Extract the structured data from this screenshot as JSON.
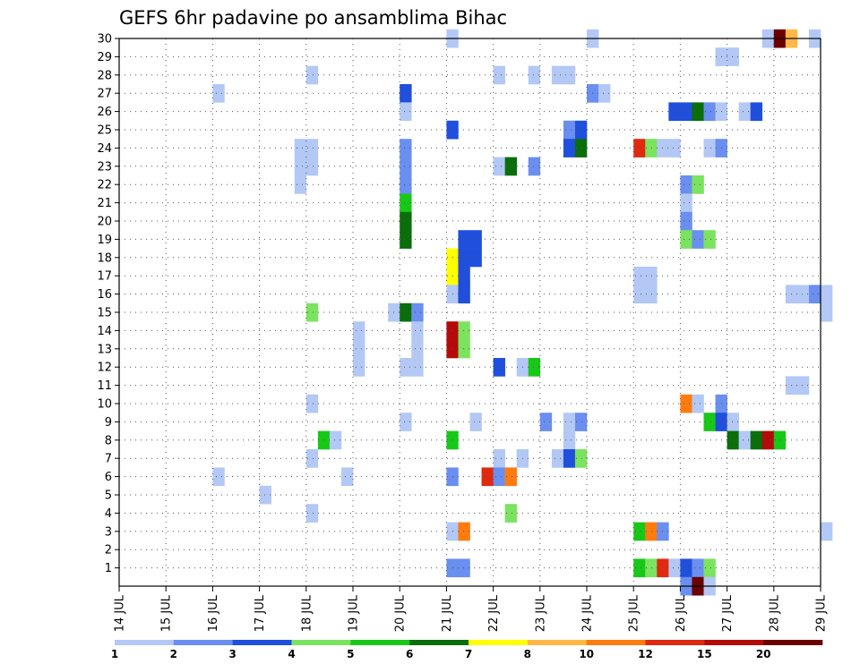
{
  "chart_data": {
    "type": "heatmap",
    "title": "GEFS 6hr padavine po ansamblima Bihac",
    "xlabel": "",
    "ylabel": "",
    "x_tick_labels": [
      "14 JUL",
      "15 JUL",
      "16 JUL",
      "17 JUL",
      "18 JUL",
      "19 JUL",
      "20 JUL",
      "21 JUL",
      "22 JUL",
      "23 JUL",
      "24 JUL",
      "25 JUL",
      "26 JUL",
      "27 JUL",
      "28 JUL",
      "29 JUL"
    ],
    "x_range_days": [
      14,
      29
    ],
    "y_tick_labels": [
      "1",
      "2",
      "3",
      "4",
      "5",
      "6",
      "7",
      "8",
      "9",
      "10",
      "11",
      "12",
      "13",
      "14",
      "15",
      "16",
      "17",
      "18",
      "19",
      "20",
      "21",
      "22",
      "23",
      "24",
      "25",
      "26",
      "27",
      "28",
      "29",
      "30"
    ],
    "y_range": [
      0,
      30
    ],
    "grid": true,
    "grid_style": "dotted",
    "colorbar": {
      "position": "bottom",
      "labels": [
        "1",
        "2",
        "3",
        "4",
        "5",
        "6",
        "7",
        "8",
        "10",
        "12",
        "15",
        "20"
      ],
      "colors": [
        "#b3c8f5",
        "#6a8ff0",
        "#1f4fdc",
        "#7be35f",
        "#18c818",
        "#0a6e0a",
        "#ffff00",
        "#ffb845",
        "#ff7b10",
        "#e02a10",
        "#b40a0a",
        "#6b0000"
      ]
    },
    "cells": [
      {
        "member": 30,
        "day": 21.0,
        "value": 1
      },
      {
        "member": 30,
        "day": 24.0,
        "value": 1
      },
      {
        "member": 30,
        "day": 27.75,
        "value": 1
      },
      {
        "member": 30,
        "day": 28.0,
        "value": 20
      },
      {
        "member": 30,
        "day": 28.25,
        "value": 8
      },
      {
        "member": 30,
        "day": 28.75,
        "value": 1
      },
      {
        "member": 29,
        "day": 26.75,
        "value": 1
      },
      {
        "member": 29,
        "day": 27.0,
        "value": 1
      },
      {
        "member": 28,
        "day": 18.0,
        "value": 1
      },
      {
        "member": 28,
        "day": 22.0,
        "value": 1
      },
      {
        "member": 28,
        "day": 22.75,
        "value": 1
      },
      {
        "member": 28,
        "day": 23.25,
        "value": 1
      },
      {
        "member": 28,
        "day": 23.5,
        "value": 1
      },
      {
        "member": 27,
        "day": 16.0,
        "value": 1
      },
      {
        "member": 27,
        "day": 20.0,
        "value": 3
      },
      {
        "member": 27,
        "day": 24.0,
        "value": 2
      },
      {
        "member": 27,
        "day": 24.25,
        "value": 1
      },
      {
        "member": 26,
        "day": 20.0,
        "value": 1
      },
      {
        "member": 26,
        "day": 25.75,
        "value": 3
      },
      {
        "member": 26,
        "day": 26.0,
        "value": 3
      },
      {
        "member": 26,
        "day": 26.25,
        "value": 6
      },
      {
        "member": 26,
        "day": 26.5,
        "value": 2
      },
      {
        "member": 26,
        "day": 26.75,
        "value": 1
      },
      {
        "member": 26,
        "day": 27.25,
        "value": 1
      },
      {
        "member": 26,
        "day": 27.5,
        "value": 3
      },
      {
        "member": 25,
        "day": 21.0,
        "value": 3
      },
      {
        "member": 25,
        "day": 23.5,
        "value": 2
      },
      {
        "member": 25,
        "day": 23.75,
        "value": 3
      },
      {
        "member": 24,
        "day": 17.75,
        "value": 1
      },
      {
        "member": 24,
        "day": 18.0,
        "value": 1
      },
      {
        "member": 24,
        "day": 20.0,
        "value": 2
      },
      {
        "member": 24,
        "day": 23.5,
        "value": 3
      },
      {
        "member": 24,
        "day": 23.75,
        "value": 6
      },
      {
        "member": 24,
        "day": 25.0,
        "value": 12
      },
      {
        "member": 24,
        "day": 25.25,
        "value": 4
      },
      {
        "member": 24,
        "day": 25.5,
        "value": 1
      },
      {
        "member": 24,
        "day": 25.75,
        "value": 1
      },
      {
        "member": 24,
        "day": 26.5,
        "value": 1
      },
      {
        "member": 24,
        "day": 26.75,
        "value": 2
      },
      {
        "member": 23,
        "day": 17.75,
        "value": 1
      },
      {
        "member": 23,
        "day": 18.0,
        "value": 1
      },
      {
        "member": 23,
        "day": 20.0,
        "value": 2
      },
      {
        "member": 23,
        "day": 22.0,
        "value": 1
      },
      {
        "member": 23,
        "day": 22.25,
        "value": 6
      },
      {
        "member": 23,
        "day": 22.75,
        "value": 2
      },
      {
        "member": 22,
        "day": 17.75,
        "value": 1
      },
      {
        "member": 22,
        "day": 20.0,
        "value": 2
      },
      {
        "member": 22,
        "day": 26.0,
        "value": 2
      },
      {
        "member": 22,
        "day": 26.25,
        "value": 4
      },
      {
        "member": 21,
        "day": 20.0,
        "value": 5
      },
      {
        "member": 21,
        "day": 26.0,
        "value": 1
      },
      {
        "member": 20,
        "day": 20.0,
        "value": 6
      },
      {
        "member": 20,
        "day": 26.0,
        "value": 2
      },
      {
        "member": 19,
        "day": 20.0,
        "value": 6
      },
      {
        "member": 19,
        "day": 21.25,
        "value": 3
      },
      {
        "member": 19,
        "day": 21.5,
        "value": 3
      },
      {
        "member": 19,
        "day": 26.0,
        "value": 4
      },
      {
        "member": 19,
        "day": 26.25,
        "value": 2
      },
      {
        "member": 19,
        "day": 26.5,
        "value": 4
      },
      {
        "member": 18,
        "day": 21.0,
        "value": 7
      },
      {
        "member": 18,
        "day": 21.25,
        "value": 3
      },
      {
        "member": 18,
        "day": 21.5,
        "value": 3
      },
      {
        "member": 17,
        "day": 21.0,
        "value": 7
      },
      {
        "member": 17,
        "day": 21.25,
        "value": 3
      },
      {
        "member": 17,
        "day": 25.0,
        "value": 1
      },
      {
        "member": 17,
        "day": 25.25,
        "value": 1
      },
      {
        "member": 16,
        "day": 21.0,
        "value": 1
      },
      {
        "member": 16,
        "day": 21.25,
        "value": 3
      },
      {
        "member": 16,
        "day": 25.0,
        "value": 1
      },
      {
        "member": 16,
        "day": 25.25,
        "value": 1
      },
      {
        "member": 16,
        "day": 28.25,
        "value": 1
      },
      {
        "member": 16,
        "day": 28.5,
        "value": 1
      },
      {
        "member": 16,
        "day": 28.75,
        "value": 2
      },
      {
        "member": 16,
        "day": 29.0,
        "value": 1
      },
      {
        "member": 15,
        "day": 18.0,
        "value": 4
      },
      {
        "member": 15,
        "day": 19.75,
        "value": 1
      },
      {
        "member": 15,
        "day": 20.0,
        "value": 6
      },
      {
        "member": 15,
        "day": 20.25,
        "value": 2
      },
      {
        "member": 15,
        "day": 29.0,
        "value": 1
      },
      {
        "member": 14,
        "day": 19.0,
        "value": 1
      },
      {
        "member": 14,
        "day": 20.25,
        "value": 1
      },
      {
        "member": 14,
        "day": 21.0,
        "value": 15
      },
      {
        "member": 14,
        "day": 21.25,
        "value": 4
      },
      {
        "member": 13,
        "day": 19.0,
        "value": 1
      },
      {
        "member": 13,
        "day": 20.25,
        "value": 1
      },
      {
        "member": 13,
        "day": 21.0,
        "value": 15
      },
      {
        "member": 13,
        "day": 21.25,
        "value": 4
      },
      {
        "member": 12,
        "day": 19.0,
        "value": 1
      },
      {
        "member": 12,
        "day": 20.0,
        "value": 1
      },
      {
        "member": 12,
        "day": 20.25,
        "value": 1
      },
      {
        "member": 12,
        "day": 22.0,
        "value": 3
      },
      {
        "member": 12,
        "day": 22.5,
        "value": 1
      },
      {
        "member": 12,
        "day": 22.75,
        "value": 5
      },
      {
        "member": 11,
        "day": 28.25,
        "value": 1
      },
      {
        "member": 11,
        "day": 28.5,
        "value": 1
      },
      {
        "member": 10,
        "day": 18.0,
        "value": 1
      },
      {
        "member": 10,
        "day": 26.0,
        "value": 10
      },
      {
        "member": 10,
        "day": 26.25,
        "value": 1
      },
      {
        "member": 10,
        "day": 26.75,
        "value": 2
      },
      {
        "member": 9,
        "day": 20.0,
        "value": 1
      },
      {
        "member": 9,
        "day": 21.5,
        "value": 1
      },
      {
        "member": 9,
        "day": 23.0,
        "value": 2
      },
      {
        "member": 9,
        "day": 23.5,
        "value": 1
      },
      {
        "member": 9,
        "day": 23.75,
        "value": 2
      },
      {
        "member": 9,
        "day": 26.5,
        "value": 5
      },
      {
        "member": 9,
        "day": 26.75,
        "value": 3
      },
      {
        "member": 9,
        "day": 27.0,
        "value": 1
      },
      {
        "member": 8,
        "day": 18.25,
        "value": 5
      },
      {
        "member": 8,
        "day": 18.5,
        "value": 1
      },
      {
        "member": 8,
        "day": 21.0,
        "value": 5
      },
      {
        "member": 8,
        "day": 23.5,
        "value": 1
      },
      {
        "member": 8,
        "day": 27.0,
        "value": 6
      },
      {
        "member": 8,
        "day": 27.25,
        "value": 1
      },
      {
        "member": 8,
        "day": 27.5,
        "value": 6
      },
      {
        "member": 8,
        "day": 27.75,
        "value": 15
      },
      {
        "member": 8,
        "day": 28.0,
        "value": 5
      },
      {
        "member": 7,
        "day": 18.0,
        "value": 1
      },
      {
        "member": 7,
        "day": 22.0,
        "value": 1
      },
      {
        "member": 7,
        "day": 22.5,
        "value": 1
      },
      {
        "member": 7,
        "day": 23.25,
        "value": 1
      },
      {
        "member": 7,
        "day": 23.5,
        "value": 3
      },
      {
        "member": 7,
        "day": 23.75,
        "value": 4
      },
      {
        "member": 6,
        "day": 16.0,
        "value": 1
      },
      {
        "member": 6,
        "day": 18.75,
        "value": 1
      },
      {
        "member": 6,
        "day": 21.0,
        "value": 2
      },
      {
        "member": 6,
        "day": 21.75,
        "value": 12
      },
      {
        "member": 6,
        "day": 22.0,
        "value": 2
      },
      {
        "member": 6,
        "day": 22.25,
        "value": 10
      },
      {
        "member": 5,
        "day": 17.0,
        "value": 1
      },
      {
        "member": 4,
        "day": 18.0,
        "value": 1
      },
      {
        "member": 4,
        "day": 22.25,
        "value": 4
      },
      {
        "member": 3,
        "day": 21.0,
        "value": 1
      },
      {
        "member": 3,
        "day": 21.25,
        "value": 10
      },
      {
        "member": 3,
        "day": 25.0,
        "value": 5
      },
      {
        "member": 3,
        "day": 25.25,
        "value": 10
      },
      {
        "member": 3,
        "day": 25.5,
        "value": 2
      },
      {
        "member": 3,
        "day": 29.0,
        "value": 1
      },
      {
        "member": 1,
        "day": 21.0,
        "value": 2
      },
      {
        "member": 1,
        "day": 21.25,
        "value": 2
      },
      {
        "member": 1,
        "day": 25.0,
        "value": 5
      },
      {
        "member": 1,
        "day": 25.25,
        "value": 4
      },
      {
        "member": 1,
        "day": 25.5,
        "value": 12
      },
      {
        "member": 1,
        "day": 25.75,
        "value": 1
      },
      {
        "member": 1,
        "day": 26.0,
        "value": 3
      },
      {
        "member": 1,
        "day": 26.25,
        "value": 2
      },
      {
        "member": 1,
        "day": 26.5,
        "value": 4
      },
      {
        "member": 0,
        "day": 26.0,
        "value": 2
      },
      {
        "member": 0,
        "day": 26.25,
        "value": 20
      },
      {
        "member": 0,
        "day": 26.5,
        "value": 1
      }
    ]
  }
}
